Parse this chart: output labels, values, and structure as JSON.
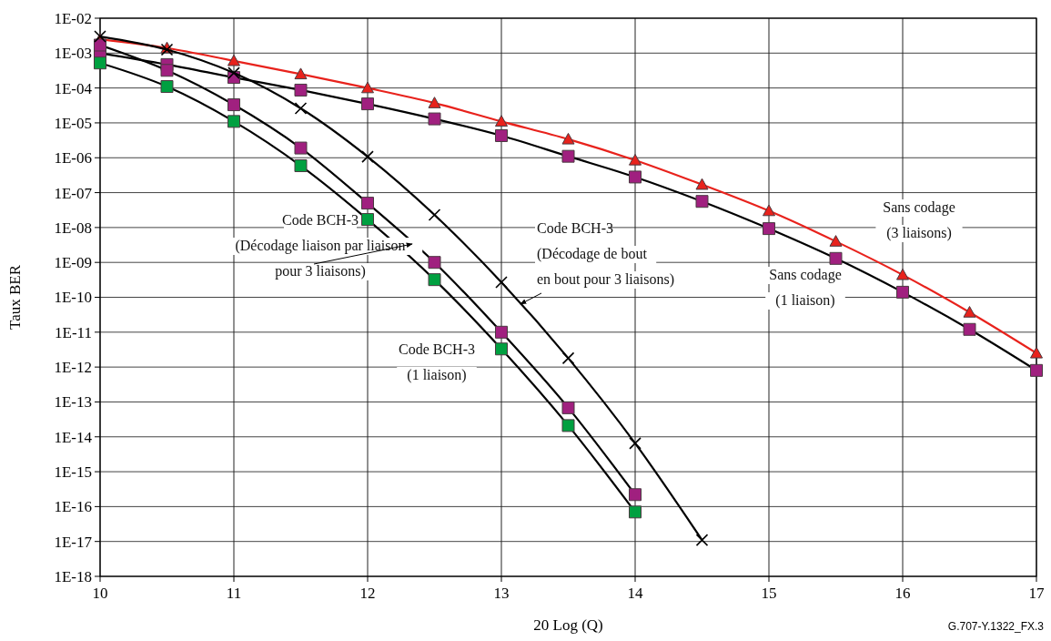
{
  "chart_data": {
    "type": "line",
    "xlabel": "20 Log (Q)",
    "ylabel": "Taux BER",
    "log": "y",
    "grid": true,
    "legend": false,
    "line_style": "solid",
    "xlim": [
      10,
      17
    ],
    "xticks": [
      10,
      11,
      12,
      13,
      14,
      15,
      16,
      17
    ],
    "ylim": [
      1e-18,
      0.01
    ],
    "yticks": [
      {
        "value": 0.01,
        "label": "1E-02"
      },
      {
        "value": 0.001,
        "label": "1E-03"
      },
      {
        "value": 0.0001,
        "label": "1E-04"
      },
      {
        "value": 1e-05,
        "label": "1E-05"
      },
      {
        "value": 1e-06,
        "label": "1E-06"
      },
      {
        "value": 1e-07,
        "label": "1E-07"
      },
      {
        "value": 1e-08,
        "label": "1E-08"
      },
      {
        "value": 1e-09,
        "label": "1E-09"
      },
      {
        "value": 1e-10,
        "label": "1E-10"
      },
      {
        "value": 1e-11,
        "label": "1E-11"
      },
      {
        "value": 1e-12,
        "label": "1E-12"
      },
      {
        "value": 1e-13,
        "label": "1E-13"
      },
      {
        "value": 1e-14,
        "label": "1E-14"
      },
      {
        "value": 1e-15,
        "label": "1E-15"
      },
      {
        "value": 1e-16,
        "label": "1E-16"
      },
      {
        "value": 1e-17,
        "label": "1E-17"
      },
      {
        "value": 1e-18,
        "label": "1E-18"
      }
    ],
    "series": [
      {
        "name": "Sans codage\n(3 liaisons)",
        "marker": "triangle",
        "color": "#e8221c",
        "colors": [
          "#e8221c",
          "#e8221c",
          "#e8221c",
          "#e8221c",
          "#e8221c",
          "#e8221c",
          "#e8221c",
          "#e8221c",
          "#e8221c",
          "#e8221c",
          "#e8221c",
          "#e8221c",
          "#e8221c",
          "#e8221c",
          "#e8221c"
        ],
        "x": [
          10,
          10.5,
          11,
          11.5,
          12,
          12.5,
          13,
          13.5,
          14,
          14.5,
          15,
          15.5,
          16,
          16.5,
          17
        ],
        "values": [
          0.0025,
          0.0014,
          0.0006,
          0.00025,
          0.0001,
          3.7e-05,
          1.1e-05,
          3.4e-06,
          8.5e-07,
          1.7e-07,
          3e-08,
          4e-09,
          4.4e-10,
          3.7e-11,
          2.5e-12
        ]
      },
      {
        "name": "Sans codage\n(1 liaison)",
        "marker": "square",
        "color": "#000000",
        "colors": [
          "#a0207f",
          "#a0207f",
          "#a0207f",
          "#a0207f",
          "#a0207f",
          "#a0207f",
          "#a0207f",
          "#a0207f",
          "#a0207f",
          "#a0207f",
          "#a0207f",
          "#a0207f",
          "#a0207f",
          "#a0207f",
          "#a0207f"
        ],
        "x": [
          10,
          10.5,
          11,
          11.5,
          12,
          12.5,
          13,
          13.5,
          14,
          14.5,
          15,
          15.5,
          16,
          16.5,
          17
        ],
        "values": [
          0.001,
          0.00047,
          0.0002,
          8.7e-05,
          3.5e-05,
          1.3e-05,
          4.3e-06,
          1.1e-06,
          2.8e-07,
          5.6e-08,
          9.3e-09,
          1.3e-09,
          1.4e-10,
          1.2e-11,
          8e-13
        ]
      },
      {
        "name": "Code BCH-3\n(Décodage liaison par liaison\npour 3 liaisons)",
        "marker": "square",
        "color": "#000000",
        "colors": [
          "#a0207f",
          "#a0207f",
          "#a0207f",
          "#a0207f",
          "#a0207f",
          "#a0207f",
          "#a0207f",
          "#a0207f",
          "#a0207f"
        ],
        "x": [
          10,
          10.5,
          11,
          11.5,
          12,
          12.5,
          13,
          13.5,
          14
        ],
        "values": [
          0.0017,
          0.00032,
          3.3e-05,
          1.9e-06,
          5e-08,
          1e-09,
          1e-11,
          6.8e-14,
          2.2e-16
        ]
      },
      {
        "name": "Code BCH-3\n(1 liaison)",
        "marker": "square",
        "color": "#000000",
        "colors": [
          "#00a040",
          "#00a040",
          "#00a040",
          "#00a040",
          "#00a040",
          "#00a040",
          "#00a040",
          "#00a040",
          "#00a040"
        ],
        "x": [
          10,
          10.5,
          11,
          11.5,
          12,
          12.5,
          13,
          13.5,
          14
        ],
        "values": [
          0.00052,
          0.00011,
          1.1e-05,
          5.9e-07,
          1.7e-08,
          3.2e-10,
          3.3e-12,
          2.1e-14,
          7e-17
        ]
      },
      {
        "name": "Code BCH-3\n(Décodage de bout\nen bout pour 3 liaisons)",
        "marker": "cross",
        "color": "#000000",
        "colors": [
          "#000000",
          "#000000",
          "#000000",
          "#000000",
          "#000000",
          "#000000",
          "#000000",
          "#000000",
          "#000000",
          "#000000"
        ],
        "x": [
          10,
          10.5,
          11,
          11.5,
          12,
          12.5,
          13,
          13.5,
          14,
          14.5
        ],
        "values": [
          0.003,
          0.00126,
          0.00027,
          2.6e-05,
          1.07e-06,
          2.3e-08,
          2.7e-10,
          1.8e-12,
          6.5e-15,
          1.1e-17
        ]
      }
    ],
    "annotations": [
      "G.707-Y.1322_FX.3"
    ]
  }
}
